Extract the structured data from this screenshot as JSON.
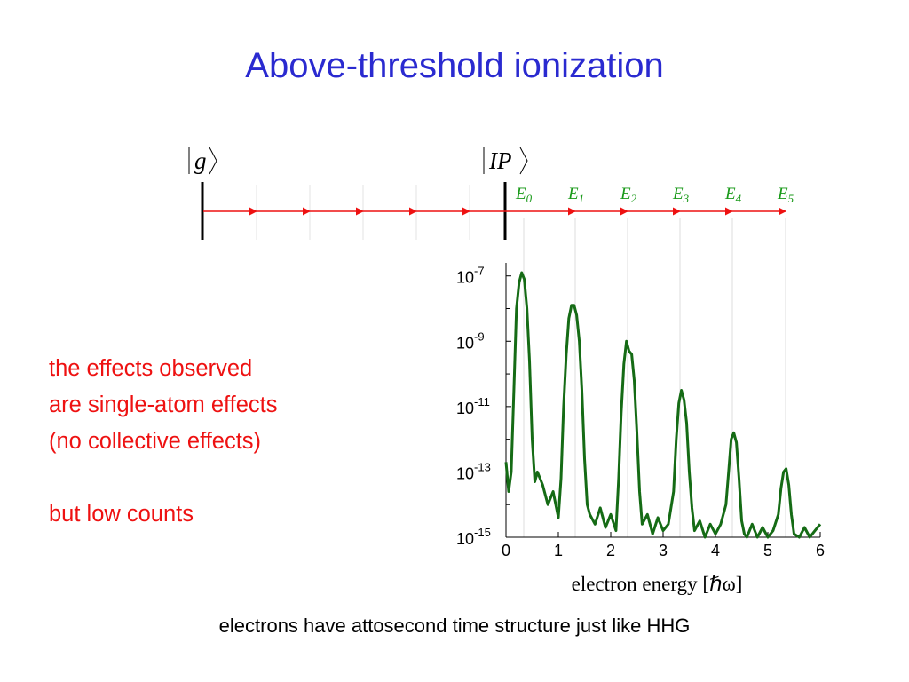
{
  "slide": {
    "title": "Above-threshold ionization",
    "caption": "electrons have attosecond time structure just like HHG"
  },
  "diagram": {
    "ground_state_label": "g",
    "ionization_label": "IP",
    "levels": [
      {
        "base": "E",
        "sub": "0"
      },
      {
        "base": "E",
        "sub": "1"
      },
      {
        "base": "E",
        "sub": "2"
      },
      {
        "base": "E",
        "sub": "3"
      },
      {
        "base": "E",
        "sub": "4"
      },
      {
        "base": "E",
        "sub": "5"
      }
    ],
    "colors": {
      "arrow": "#ee1111",
      "level_label": "#1a9a1a",
      "spectrum": "#156b15"
    }
  },
  "notes": {
    "line1": "the effects observed",
    "line2": "are single-atom effects",
    "line3": "(no collective effects)",
    "line4": "but low counts"
  },
  "chart_data": {
    "type": "line",
    "xlabel": "electron energy [ℏω]",
    "ylabel": "",
    "xlim": [
      0,
      6
    ],
    "x_ticks": [
      "0",
      "1",
      "2",
      "3",
      "4",
      "5",
      "6"
    ],
    "ylim_log10": [
      -15,
      -6.6
    ],
    "y_ticks": [
      {
        "base": "10",
        "exp": "-7"
      },
      {
        "base": "10",
        "exp": "-9"
      },
      {
        "base": "10",
        "exp": "-11"
      },
      {
        "base": "10",
        "exp": "-13"
      },
      {
        "base": "10",
        "exp": "-15"
      }
    ],
    "y_scale": "log",
    "grid": "vertical lines at peak positions",
    "series": [
      {
        "color": "#156b15",
        "x": [
          0.0,
          0.05,
          0.1,
          0.15,
          0.2,
          0.25,
          0.3,
          0.35,
          0.4,
          0.45,
          0.5,
          0.55,
          0.6,
          0.7,
          0.8,
          0.9,
          1.0,
          1.05,
          1.1,
          1.15,
          1.2,
          1.25,
          1.3,
          1.35,
          1.4,
          1.45,
          1.5,
          1.55,
          1.6,
          1.7,
          1.8,
          1.9,
          2.0,
          2.1,
          2.15,
          2.2,
          2.25,
          2.3,
          2.35,
          2.4,
          2.45,
          2.5,
          2.55,
          2.6,
          2.7,
          2.8,
          2.9,
          3.0,
          3.1,
          3.2,
          3.25,
          3.3,
          3.35,
          3.4,
          3.45,
          3.5,
          3.55,
          3.6,
          3.7,
          3.8,
          3.9,
          4.0,
          4.1,
          4.2,
          4.25,
          4.3,
          4.35,
          4.4,
          4.45,
          4.5,
          4.55,
          4.6,
          4.7,
          4.8,
          4.9,
          5.0,
          5.1,
          5.2,
          5.25,
          5.3,
          5.35,
          5.4,
          5.45,
          5.5,
          5.6,
          5.7,
          5.8,
          5.9,
          6.0
        ],
        "y_log10": [
          -12.7,
          -13.6,
          -13.0,
          -10.5,
          -8.0,
          -7.2,
          -6.9,
          -7.1,
          -8.0,
          -9.6,
          -12.0,
          -13.3,
          -13.0,
          -13.4,
          -14.0,
          -13.6,
          -14.4,
          -13.2,
          -11.0,
          -9.4,
          -8.3,
          -7.9,
          -7.9,
          -8.2,
          -9.0,
          -10.5,
          -12.6,
          -14.0,
          -14.3,
          -14.6,
          -14.1,
          -14.7,
          -14.3,
          -14.8,
          -13.2,
          -11.2,
          -9.7,
          -9.0,
          -9.3,
          -9.4,
          -10.2,
          -11.8,
          -13.6,
          -14.6,
          -14.3,
          -14.9,
          -14.4,
          -14.8,
          -14.6,
          -13.6,
          -12.0,
          -10.9,
          -10.5,
          -10.8,
          -11.5,
          -13.0,
          -14.1,
          -14.8,
          -14.5,
          -15.0,
          -14.6,
          -14.9,
          -14.6,
          -14.0,
          -13.0,
          -12.0,
          -11.8,
          -12.1,
          -13.2,
          -14.5,
          -14.9,
          -15.0,
          -14.6,
          -15.0,
          -14.7,
          -15.0,
          -14.8,
          -14.3,
          -13.5,
          -13.0,
          -12.9,
          -13.4,
          -14.3,
          -14.9,
          -15.0,
          -14.7,
          -15.0,
          -14.8,
          -14.6
        ]
      }
    ]
  }
}
